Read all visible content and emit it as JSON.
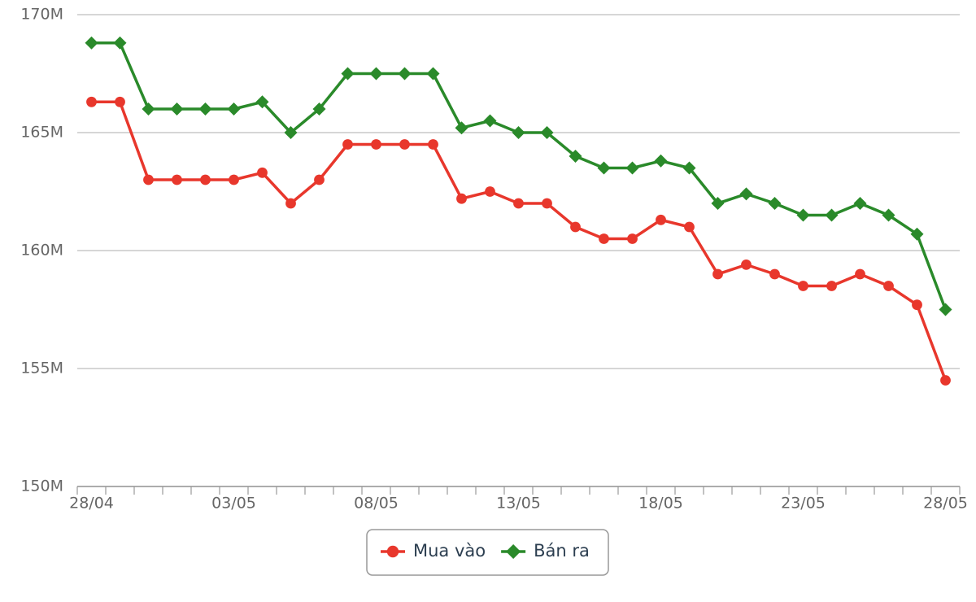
{
  "chart_data": {
    "type": "line",
    "categories": [
      "28/04",
      null,
      null,
      null,
      null,
      "03/05",
      null,
      null,
      null,
      null,
      "08/05",
      null,
      null,
      null,
      null,
      "13/05",
      null,
      null,
      null,
      null,
      "18/05",
      null,
      null,
      null,
      null,
      "23/05",
      null,
      null,
      null,
      null,
      "28/05"
    ],
    "series": [
      {
        "name": "Mua vào",
        "color": "#e8372c",
        "marker": "circle",
        "values": [
          166.3,
          166.3,
          163.0,
          163.0,
          163.0,
          163.0,
          163.3,
          162.0,
          163.0,
          164.5,
          164.5,
          164.5,
          164.5,
          162.2,
          162.5,
          162.0,
          162.0,
          161.0,
          160.5,
          160.5,
          161.3,
          161.0,
          159.0,
          159.4,
          159.0,
          158.5,
          158.5,
          159.0,
          158.5,
          157.7,
          154.5
        ]
      },
      {
        "name": "Bán ra",
        "color": "#2a8a2a",
        "marker": "diamond",
        "values": [
          168.8,
          168.8,
          166.0,
          166.0,
          166.0,
          166.0,
          166.3,
          165.0,
          166.0,
          167.5,
          167.5,
          167.5,
          167.5,
          165.2,
          165.5,
          165.0,
          165.0,
          164.0,
          163.5,
          163.5,
          163.8,
          163.5,
          162.0,
          162.4,
          162.0,
          161.5,
          161.5,
          162.0,
          161.5,
          160.7,
          157.5
        ]
      }
    ],
    "ylim": [
      150,
      170
    ],
    "yticks": [
      {
        "value": 150,
        "label": "150M"
      },
      {
        "value": 155,
        "label": "155M"
      },
      {
        "value": 160,
        "label": "160M"
      },
      {
        "value": 165,
        "label": "165M"
      },
      {
        "value": 170,
        "label": "170M"
      }
    ],
    "grid": true
  }
}
